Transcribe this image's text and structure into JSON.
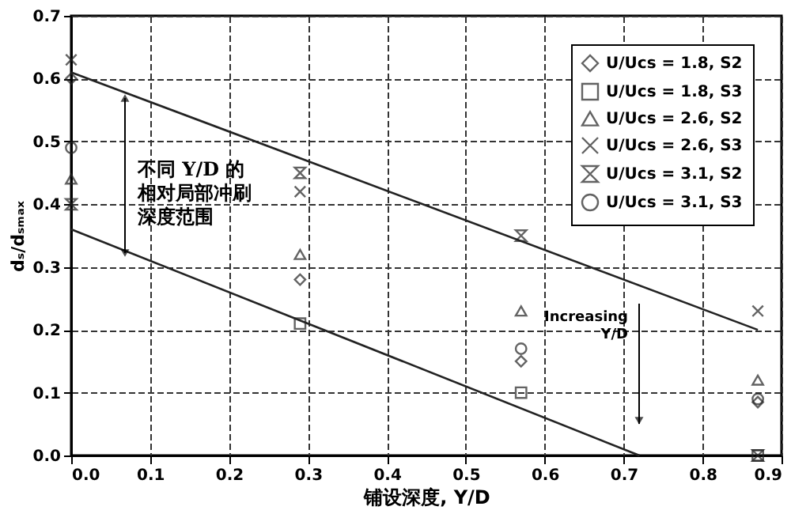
{
  "chart_data": {
    "type": "scatter",
    "xlabel": "铺设深度, Y/D",
    "ylabel": "dₛ/dₛₘₐₓ",
    "xlim": [
      0,
      0.9
    ],
    "ylim": [
      0,
      0.7
    ],
    "xticks": [
      {
        "value": 0,
        "label": "0.0"
      },
      {
        "value": 0.1,
        "label": "0.1"
      },
      {
        "value": 0.2,
        "label": "0.2"
      },
      {
        "value": 0.3,
        "label": "0.3"
      },
      {
        "value": 0.4,
        "label": "0.4"
      },
      {
        "value": 0.5,
        "label": "0.5"
      },
      {
        "value": 0.6,
        "label": "0.6"
      },
      {
        "value": 0.7,
        "label": "0.7"
      },
      {
        "value": 0.8,
        "label": "0.8"
      },
      {
        "value": 0.9,
        "label": "0.9"
      }
    ],
    "yticks": [
      {
        "value": 0,
        "label": "0.0"
      },
      {
        "value": 0.1,
        "label": "0.1"
      },
      {
        "value": 0.2,
        "label": "0.2"
      },
      {
        "value": 0.3,
        "label": "0.3"
      },
      {
        "value": 0.4,
        "label": "0.4"
      },
      {
        "value": 0.5,
        "label": "0.5"
      },
      {
        "value": 0.6,
        "label": "0.6"
      },
      {
        "value": 0.7,
        "label": "0.7"
      }
    ],
    "grid": true,
    "legend": "top right",
    "series": [
      {
        "name": "U/Ucs = 1.8, S2",
        "color": "#222222",
        "marker": "diamond",
        "x": [
          0,
          0.29,
          0.57,
          0.87
        ],
        "values": [
          0.6,
          0.28,
          0.15,
          0.085
        ]
      },
      {
        "name": "U/Ucs = 1.8, S3",
        "color": "#222222",
        "marker": "square",
        "x": [
          0.29,
          0.57,
          0.87
        ],
        "values": [
          0.21,
          0.1,
          0.0
        ]
      },
      {
        "name": "U/Ucs = 2.6, S2",
        "color": "#222222",
        "marker": "triangle",
        "x": [
          0,
          0.29,
          0.57,
          0.87
        ],
        "values": [
          0.44,
          0.32,
          0.23,
          0.12
        ]
      },
      {
        "name": "U/Ucs = 2.6, S3",
        "color": "#222222",
        "marker": "cross",
        "x": [
          0,
          0.29,
          0.87
        ],
        "values": [
          0.63,
          0.42,
          0.23
        ]
      },
      {
        "name": "U/Ucs = 3.1, S2",
        "color": "#222222",
        "x": [
          0,
          0.29,
          0.57,
          0.87
        ],
        "values": [
          0.4,
          0.45,
          0.35,
          0.0
        ]
      },
      {
        "name": "U/Ucs = 3.1, S3",
        "color": "#222222",
        "marker": "circle",
        "x": [
          0,
          0.57,
          0.87
        ],
        "values": [
          0.49,
          0.17,
          0.09
        ]
      },
      {
        "type": "line",
        "color": "#222222",
        "x": [
          0,
          0.87
        ],
        "values": [
          0.61,
          0.2
        ]
      },
      {
        "type": "line",
        "color": "#222222",
        "x": [
          0,
          0.72
        ],
        "values": [
          0.36,
          0.0
        ]
      }
    ],
    "annotations": [
      "不同 Y/D 的相对局部冲刷深度范围",
      "Increasing\nY/D"
    ]
  }
}
